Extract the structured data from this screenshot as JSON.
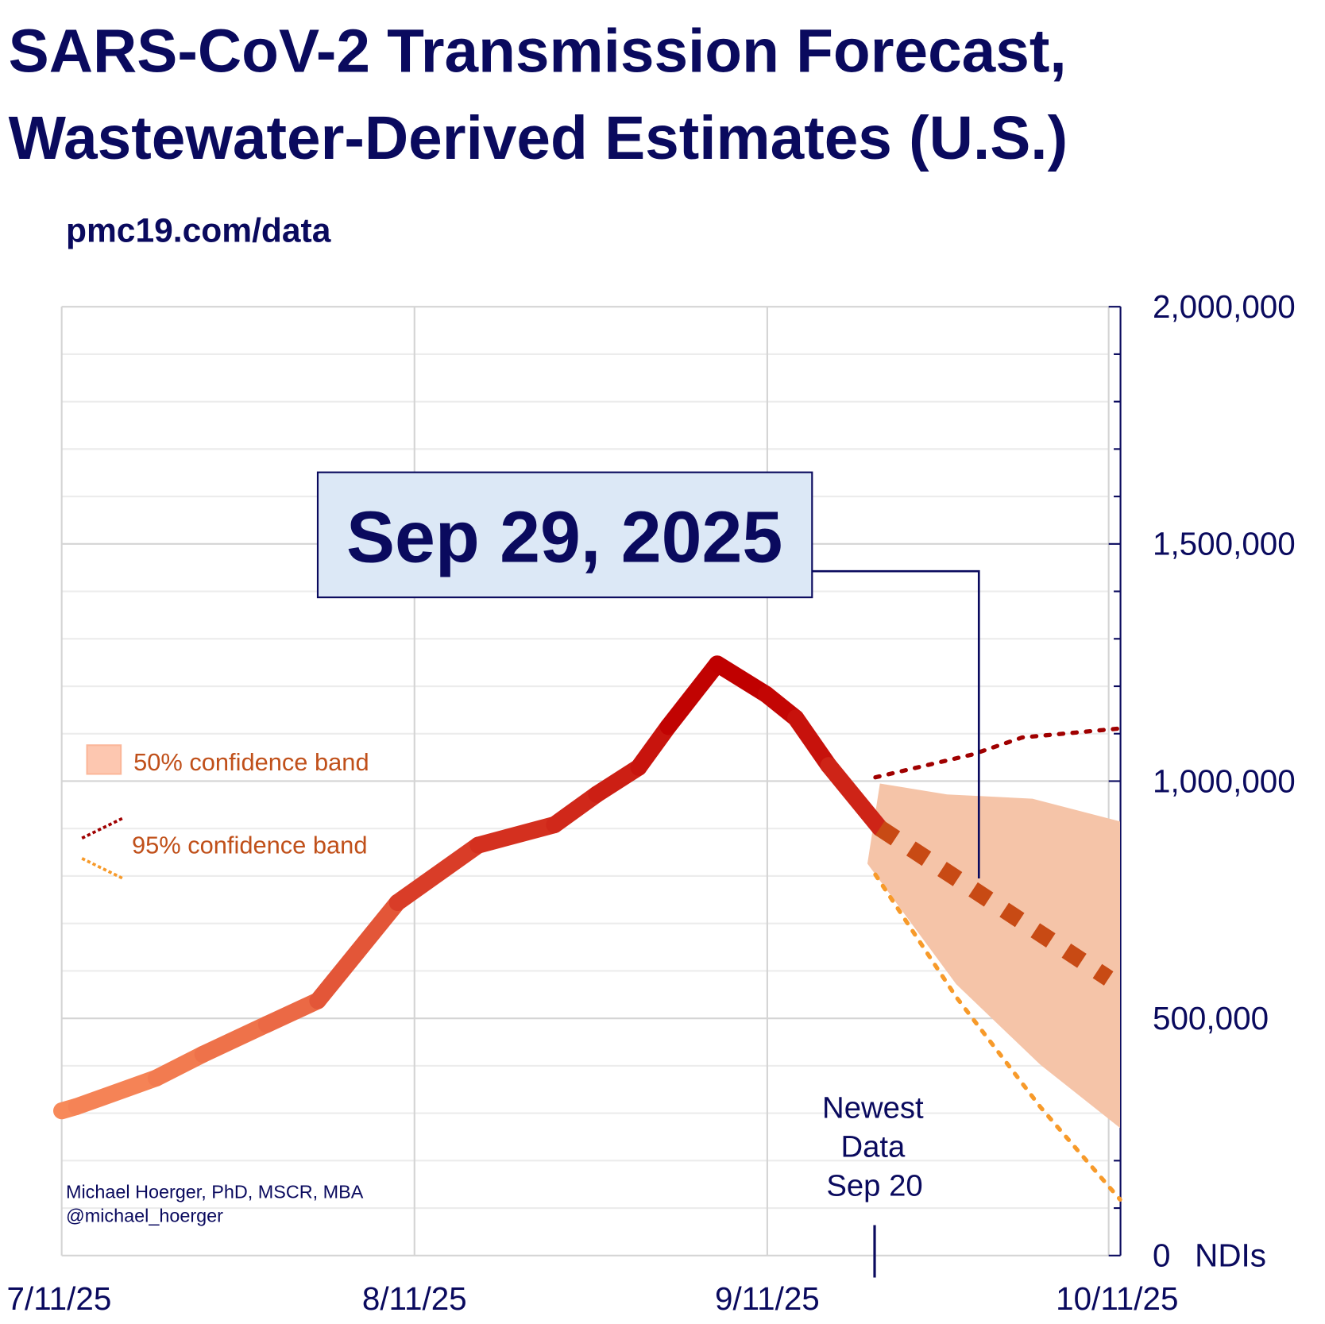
{
  "chart_data": {
    "type": "line",
    "title_line1": "SARS-CoV-2 Transmission Forecast,",
    "title_line2": "Wastewater-Derived Estimates (U.S.)",
    "subtitle": "pmc19.com/data",
    "x_start": "7/11/25",
    "x_range_days": [
      0,
      92
    ],
    "x_ticks": [
      {
        "day": 0,
        "label": "7/11/25"
      },
      {
        "day": 31,
        "label": "8/11/25"
      },
      {
        "day": 62,
        "label": "9/11/25"
      },
      {
        "day": 92,
        "label": "10/11/25"
      }
    ],
    "ylim": [
      0,
      2000000
    ],
    "y_ticks": [
      {
        "value": 0,
        "label": "0"
      },
      {
        "value": 500000,
        "label": "500,000"
      },
      {
        "value": 1000000,
        "label": "1,000,000"
      },
      {
        "value": 1500000,
        "label": "1,500,000"
      },
      {
        "value": 2000000,
        "label": "2,000,000"
      }
    ],
    "y_unit_label": "NDIs",
    "series": [
      {
        "name": "observed",
        "points": [
          [
            0,
            305000
          ],
          [
            1.3,
            314000
          ],
          [
            8.3,
            374000
          ],
          [
            12.4,
            424000
          ],
          [
            18,
            487000
          ],
          [
            22.5,
            537000
          ],
          [
            29.5,
            744000
          ],
          [
            36.6,
            865000
          ],
          [
            43.3,
            908000
          ],
          [
            47,
            972000
          ],
          [
            50.7,
            1029000
          ],
          [
            53.3,
            1115000
          ],
          [
            57.6,
            1247000
          ],
          [
            61.9,
            1183000
          ],
          [
            64.5,
            1133000
          ],
          [
            67.4,
            1033000
          ],
          [
            71.9,
            901000
          ]
        ]
      },
      {
        "name": "forecast",
        "points": [
          [
            71.9,
            901000
          ],
          [
            92,
            584000
          ]
        ]
      },
      {
        "name": "50% band upper",
        "points": [
          [
            71.9,
            995000
          ],
          [
            77.8,
            972000
          ],
          [
            85.3,
            963000
          ],
          [
            93,
            915000
          ]
        ]
      },
      {
        "name": "50% band lower",
        "points": [
          [
            70.8,
            826000
          ],
          [
            78.6,
            572000
          ],
          [
            86,
            402000
          ],
          [
            93,
            269000
          ]
        ]
      },
      {
        "name": "95% band upper",
        "points": [
          [
            71.5,
            1008000
          ],
          [
            80,
            1056000
          ],
          [
            84.4,
            1092000
          ],
          [
            93,
            1111000
          ]
        ]
      },
      {
        "name": "95% band lower",
        "points": [
          [
            71.5,
            803000
          ],
          [
            78.6,
            545000
          ],
          [
            86,
            313000
          ],
          [
            93,
            118000
          ]
        ]
      }
    ],
    "legend": {
      "band50": "50% confidence band",
      "band95": "95% confidence band",
      "placement": "left"
    },
    "annotation": {
      "text": "Sep 29, 2025",
      "day": 80,
      "value": 795000
    },
    "newest_data": {
      "line1": "Newest",
      "line2": "Data",
      "line3": "Sep 20",
      "day": 71.9
    },
    "credit_line1": "Michael Hoerger, PhD, MSCR, MBA",
    "credit_line2": "@michael_hoerger",
    "colors": {
      "navy": "#0a0a5e",
      "low": "#f88a5a",
      "high": "#c00000",
      "forecast": "#c84a14",
      "band50": "#f5c4a8",
      "band95_upper": "#a00000",
      "band95_lower": "#f79a2a",
      "annotation_bg": "#dce8f6"
    }
  }
}
